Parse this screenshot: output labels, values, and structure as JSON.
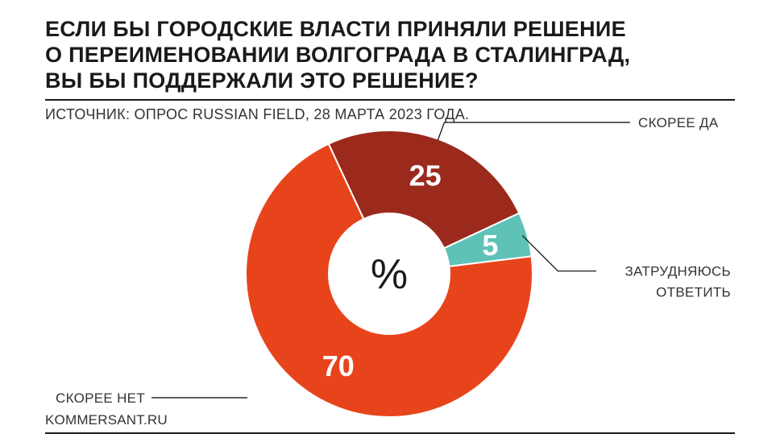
{
  "title_lines": [
    "ЕСЛИ БЫ ГОРОДСКИЕ ВЛАСТИ ПРИНЯЛИ РЕШЕНИЕ",
    "О ПЕРЕИМЕНОВАНИИ ВОЛГОГРАДА В СТАЛИНГРАД,",
    "ВЫ БЫ ПОДДЕРЖАЛИ ЭТО РЕШЕНИЕ?"
  ],
  "source": "ИСТОЧНИК: ОПРОС RUSSIAN FIELD, 28 МАРТА 2023 ГОДА.",
  "footer": "KOMMERSANT.RU",
  "chart_data": {
    "type": "pie",
    "donut": true,
    "center_label": "%",
    "slices": [
      {
        "label": "СКОРЕЕ ДА",
        "label_lines": [
          "СКОРЕЕ ДА"
        ],
        "value": 25,
        "color": "#9b2a1c"
      },
      {
        "label": "ЗАТРУДНЯЮСЬ ОТВЕТИТЬ",
        "label_lines": [
          "ЗАТРУДНЯЮСЬ",
          "ОТВЕТИТЬ"
        ],
        "value": 5,
        "color": "#5fc2b7"
      },
      {
        "label": "СКОРЕЕ НЕТ",
        "label_lines": [
          "СКОРЕЕ НЕТ"
        ],
        "value": 70,
        "color": "#e8441b"
      }
    ]
  }
}
